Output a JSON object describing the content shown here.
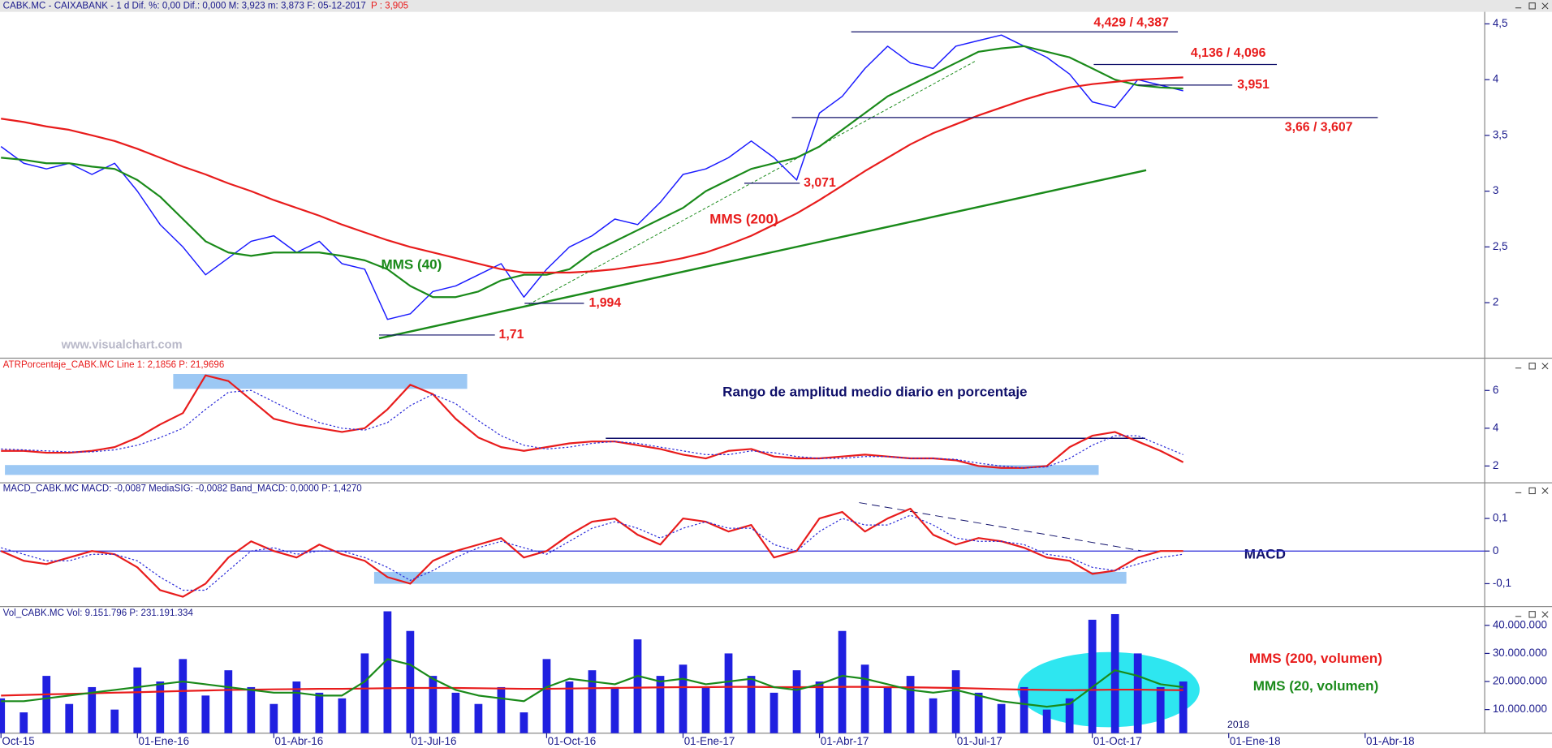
{
  "chart_data": [
    {
      "type": "line",
      "header": "CABK.MC - CAIXABANK - 1 d Dif. %: 0,00 Dif.: 0,000 M: 3,923 m: 3,873 F: 05-12-2017",
      "header_price": "P : 3,905",
      "watermark": "www.visualchart.com",
      "ylim": [
        1.52,
        4.59
      ],
      "yticks": [
        2,
        {
          "value": 2.5,
          "label": "2,5"
        },
        3,
        {
          "value": 3.5,
          "label": "3,5"
        },
        4,
        {
          "value": 4.5,
          "label": "4,5"
        }
      ],
      "series": [
        {
          "color": "#1a1aff",
          "values": [
            3.4,
            3.25,
            3.2,
            3.25,
            3.15,
            3.25,
            3.0,
            2.7,
            2.5,
            2.25,
            2.4,
            2.55,
            2.6,
            2.45,
            2.55,
            2.35,
            2.3,
            1.85,
            1.9,
            2.1,
            2.15,
            2.25,
            2.35,
            2.05,
            2.3,
            2.5,
            2.6,
            2.75,
            2.7,
            2.9,
            3.15,
            3.2,
            3.3,
            3.45,
            3.3,
            3.1,
            3.7,
            3.85,
            4.1,
            4.3,
            4.15,
            4.1,
            4.3,
            4.35,
            4.4,
            4.3,
            4.2,
            4.05,
            3.8,
            3.75,
            4.0,
            3.95,
            3.9,
            null,
            null,
            null,
            null,
            null,
            null,
            null,
            null,
            null,
            null,
            null,
            null
          ]
        },
        {
          "name": "MMS (40)",
          "color": "#1a8a1a",
          "values": [
            3.3,
            3.28,
            3.25,
            3.25,
            3.22,
            3.2,
            3.1,
            2.95,
            2.75,
            2.55,
            2.45,
            2.42,
            2.45,
            2.45,
            2.45,
            2.42,
            2.38,
            2.3,
            2.15,
            2.05,
            2.05,
            2.1,
            2.2,
            2.25,
            2.25,
            2.3,
            2.45,
            2.55,
            2.65,
            2.75,
            2.85,
            3.0,
            3.1,
            3.2,
            3.25,
            3.3,
            3.4,
            3.55,
            3.7,
            3.85,
            3.95,
            4.05,
            4.15,
            4.25,
            4.28,
            4.3,
            4.25,
            4.2,
            4.1,
            4.0,
            3.95,
            3.93,
            3.92,
            null,
            null,
            null,
            null,
            null,
            null,
            null,
            null,
            null,
            null,
            null,
            null
          ]
        },
        {
          "name": "MMS (200)",
          "color": "#e81c1c",
          "values": [
            3.65,
            3.62,
            3.58,
            3.55,
            3.5,
            3.45,
            3.38,
            3.3,
            3.22,
            3.15,
            3.07,
            3.0,
            2.92,
            2.85,
            2.78,
            2.7,
            2.63,
            2.56,
            2.5,
            2.45,
            2.4,
            2.35,
            2.3,
            2.27,
            2.27,
            2.27,
            2.28,
            2.3,
            2.33,
            2.36,
            2.4,
            2.45,
            2.52,
            2.6,
            2.7,
            2.8,
            2.92,
            3.05,
            3.18,
            3.3,
            3.42,
            3.52,
            3.6,
            3.68,
            3.75,
            3.82,
            3.88,
            3.93,
            3.96,
            3.98,
            4.0,
            4.01,
            4.02,
            null,
            null,
            null,
            null,
            null,
            null,
            null,
            null,
            null,
            null,
            null,
            null
          ]
        }
      ],
      "levels": [
        {
          "value": 4.429,
          "label": "4,429 / 4,387"
        },
        {
          "value": 4.136,
          "label": "4,136 / 4,096"
        },
        {
          "value": 3.951,
          "label": "3,951"
        },
        {
          "value": 3.66,
          "label": "3,66 / 3,607"
        },
        {
          "value": 3.071,
          "label": "3,071"
        },
        {
          "value": 1.994,
          "label": "1,994"
        },
        {
          "value": 1.71,
          "label": "1,71"
        }
      ]
    },
    {
      "type": "line",
      "header": "ATRPorcentaje_CABK.MC Line 1: 2,1856 P: 21,9696",
      "annotation": "Rango de amplitud medio diario en porcentaje",
      "ylim": [
        1.16,
        7.5
      ],
      "yticks": [
        2,
        4,
        6
      ],
      "series": [
        {
          "color": "#e81c1c",
          "values": [
            2.8,
            2.8,
            2.7,
            2.7,
            2.8,
            3.0,
            3.5,
            4.2,
            4.8,
            6.8,
            6.5,
            5.5,
            4.5,
            4.2,
            4.0,
            3.8,
            4.0,
            5.0,
            6.3,
            5.8,
            4.5,
            3.5,
            3.0,
            2.8,
            3.0,
            3.2,
            3.3,
            3.3,
            3.1,
            2.9,
            2.6,
            2.4,
            2.8,
            2.9,
            2.5,
            2.4,
            2.4,
            2.5,
            2.6,
            2.5,
            2.4,
            2.4,
            2.3,
            2.0,
            1.9,
            1.9,
            2.0,
            3.0,
            3.6,
            3.8,
            3.3,
            2.8,
            2.2,
            null,
            null,
            null,
            null,
            null,
            null,
            null,
            null,
            null,
            null,
            null,
            null
          ]
        },
        {
          "color": "#2a2ad8",
          "style": "dotted",
          "values": [
            2.9,
            2.85,
            2.8,
            2.75,
            2.75,
            2.85,
            3.1,
            3.5,
            4.0,
            5.0,
            5.9,
            6.0,
            5.4,
            4.8,
            4.3,
            4.0,
            3.9,
            4.3,
            5.2,
            5.8,
            5.3,
            4.4,
            3.6,
            3.1,
            2.9,
            3.0,
            3.2,
            3.3,
            3.2,
            3.0,
            2.8,
            2.6,
            2.6,
            2.8,
            2.7,
            2.5,
            2.4,
            2.4,
            2.5,
            2.5,
            2.4,
            2.4,
            2.35,
            2.15,
            2.0,
            1.9,
            1.95,
            2.4,
            3.1,
            3.6,
            3.6,
            3.1,
            2.6,
            null,
            null,
            null,
            null,
            null,
            null,
            null,
            null,
            null,
            null,
            null,
            null
          ]
        }
      ]
    },
    {
      "type": "line",
      "header": "MACD_CABK.MC MACD: -0,0087 MediaSIG: -0,0082 Band_MACD: 0,0000 P: 1,4270",
      "annotation": "MACD",
      "ylim": [
        -0.167,
        0.197
      ],
      "yticks": [
        {
          "value": 0.1,
          "label": "0,1"
        },
        0,
        {
          "value": -0.1,
          "label": "-0,1"
        }
      ],
      "series": [
        {
          "color": "#e81c1c",
          "values": [
            0.0,
            -0.03,
            -0.04,
            -0.02,
            0.0,
            -0.01,
            -0.05,
            -0.12,
            -0.14,
            -0.1,
            -0.02,
            0.03,
            0.0,
            -0.02,
            0.02,
            -0.01,
            -0.03,
            -0.08,
            -0.1,
            -0.03,
            0.0,
            0.02,
            0.04,
            -0.02,
            0.0,
            0.05,
            0.09,
            0.1,
            0.05,
            0.02,
            0.1,
            0.09,
            0.06,
            0.08,
            -0.02,
            0.0,
            0.1,
            0.12,
            0.06,
            0.1,
            0.13,
            0.05,
            0.02,
            0.04,
            0.03,
            0.01,
            -0.02,
            -0.03,
            -0.07,
            -0.06,
            -0.02,
            0.0,
            0.0,
            null,
            null,
            null,
            null,
            null,
            null,
            null,
            null,
            null,
            null,
            null,
            null
          ]
        },
        {
          "color": "#2a2ad8",
          "style": "dotted",
          "values": [
            0.01,
            -0.01,
            -0.03,
            -0.03,
            -0.01,
            -0.01,
            -0.03,
            -0.08,
            -0.12,
            -0.12,
            -0.06,
            0.0,
            0.01,
            -0.01,
            0.0,
            0.0,
            -0.02,
            -0.05,
            -0.09,
            -0.06,
            -0.02,
            0.01,
            0.03,
            0.01,
            -0.01,
            0.03,
            0.07,
            0.09,
            0.07,
            0.04,
            0.07,
            0.09,
            0.07,
            0.07,
            0.02,
            0.0,
            0.06,
            0.1,
            0.08,
            0.08,
            0.11,
            0.08,
            0.04,
            0.03,
            0.03,
            0.02,
            -0.01,
            -0.02,
            -0.05,
            -0.06,
            -0.04,
            -0.02,
            -0.01,
            null,
            null,
            null,
            null,
            null,
            null,
            null,
            null,
            null,
            null,
            null,
            null
          ]
        }
      ]
    },
    {
      "type": "bar",
      "header": "Vol_CABK.MC Vol: 9.151.796 P: 231.191.334",
      "year_marker": "2018",
      "categories": [
        "Oct-15",
        null,
        null,
        null,
        null,
        null,
        "01-Ene-16",
        null,
        null,
        null,
        null,
        null,
        "01-Abr-16",
        null,
        null,
        null,
        null,
        null,
        "01-Jul-16",
        null,
        null,
        null,
        null,
        null,
        "01-Oct-16",
        null,
        null,
        null,
        null,
        null,
        "01-Ene-17",
        null,
        null,
        null,
        null,
        null,
        "01-Abr-17",
        null,
        null,
        null,
        null,
        null,
        "01-Jul-17",
        null,
        null,
        null,
        null,
        null,
        "01-Oct-17",
        null,
        null,
        null,
        null,
        null,
        "01-Ene-18",
        null,
        null,
        null,
        null,
        null,
        "01-Abr-18",
        null,
        null,
        null,
        null
      ],
      "color": "#2020e0",
      "values": [
        14000000,
        9000000,
        22000000,
        12000000,
        18000000,
        10000000,
        25000000,
        20000000,
        28000000,
        15000000,
        24000000,
        18000000,
        12000000,
        20000000,
        16000000,
        14000000,
        30000000,
        45000000,
        38000000,
        22000000,
        16000000,
        12000000,
        18000000,
        9000000,
        28000000,
        20000000,
        24000000,
        18000000,
        35000000,
        22000000,
        26000000,
        18000000,
        30000000,
        22000000,
        16000000,
        24000000,
        20000000,
        38000000,
        26000000,
        18000000,
        22000000,
        14000000,
        24000000,
        16000000,
        12000000,
        18000000,
        10000000,
        14000000,
        42000000,
        44000000,
        30000000,
        18000000,
        20000000,
        null,
        null,
        null,
        null,
        null,
        null,
        null,
        null,
        null,
        null,
        null,
        null
      ],
      "ylim": [
        1600000,
        45300000
      ],
      "yticks": [
        {
          "value": 10000000,
          "label": "10.000.000"
        },
        {
          "value": 20000000,
          "label": "20.000.000"
        },
        {
          "value": 30000000,
          "label": "30.000.000"
        },
        {
          "value": 40000000,
          "label": "40.000.000"
        }
      ],
      "series": [
        {
          "name": "MMS (200, volumen)",
          "color": "#e81c1c",
          "values": [
            15000000,
            15200000,
            15400000,
            15600000,
            15800000,
            16000000,
            16200000,
            16400000,
            16600000,
            16800000,
            17000000,
            17100000,
            17200000,
            17300000,
            17400000,
            17400000,
            17500000,
            17600000,
            17700000,
            17700000,
            17700000,
            17600000,
            17500000,
            17400000,
            17400000,
            17500000,
            17600000,
            17700000,
            17800000,
            17900000,
            18000000,
            18000000,
            18100000,
            18100000,
            18000000,
            18000000,
            18000000,
            18100000,
            18100000,
            18000000,
            17900000,
            17800000,
            17700000,
            17500000,
            17300000,
            17100000,
            17000000,
            16900000,
            17000000,
            17100000,
            17100000,
            17000000,
            16900000,
            null,
            null,
            null,
            null,
            null,
            null,
            null,
            null,
            null,
            null,
            null,
            null
          ]
        },
        {
          "name": "MMS (20, volumen)",
          "color": "#1a8a1a",
          "values": [
            13000000,
            13000000,
            14000000,
            15000000,
            16000000,
            17000000,
            18000000,
            19000000,
            20000000,
            19000000,
            18000000,
            17000000,
            16000000,
            16000000,
            15000000,
            15000000,
            20000000,
            28000000,
            26000000,
            21000000,
            17000000,
            15000000,
            14000000,
            13000000,
            18000000,
            21000000,
            20000000,
            19000000,
            22000000,
            20000000,
            21000000,
            19000000,
            20000000,
            21000000,
            18000000,
            17000000,
            19000000,
            22000000,
            21000000,
            19000000,
            17000000,
            16000000,
            17000000,
            15000000,
            13000000,
            12000000,
            11000000,
            12000000,
            18000000,
            24000000,
            22000000,
            19000000,
            18000000,
            null,
            null,
            null,
            null,
            null,
            null,
            null,
            null,
            null,
            null,
            null,
            null
          ]
        }
      ]
    }
  ]
}
